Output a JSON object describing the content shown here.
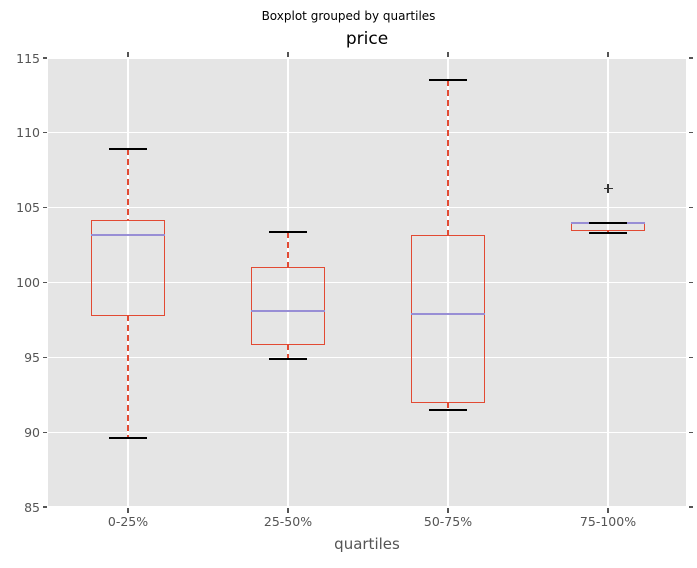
{
  "figure": {
    "title": "Boxplot grouped by quartiles",
    "axes_title": "price",
    "xlabel": "quartiles"
  },
  "colors": {
    "figure_bg": "#ffffff",
    "plot_bg": "#e5e5e5",
    "grid": "#ffffff",
    "box": "#e24a33",
    "whisker": "#e24a33",
    "median": "#988ed5",
    "cap": "#000000",
    "flier": "#333333",
    "tick_text": "#555555",
    "title_text": "#000000"
  },
  "chart_data": {
    "type": "boxplot",
    "title": "Boxplot grouped by quartiles",
    "axes_title": "price",
    "xlabel": "quartiles",
    "ylabel": "",
    "grid": true,
    "ylim": [
      85,
      115
    ],
    "yticks": [
      85,
      90,
      95,
      100,
      105,
      110,
      115
    ],
    "categories": [
      "0-25%",
      "25-50%",
      "50-75%",
      "75-100%"
    ],
    "series": [
      {
        "category": "0-25%",
        "whislo": 89.6,
        "q1": 97.8,
        "med": 103.2,
        "q3": 104.1,
        "whishi": 108.9,
        "fliers": []
      },
      {
        "category": "25-50%",
        "whislo": 94.9,
        "q1": 95.9,
        "med": 98.1,
        "q3": 101.0,
        "whishi": 103.4,
        "fliers": []
      },
      {
        "category": "50-75%",
        "whislo": 91.5,
        "q1": 92.0,
        "med": 97.9,
        "q3": 103.1,
        "whishi": 113.5,
        "fliers": []
      },
      {
        "category": "75-100%",
        "whislo": 103.3,
        "q1": 103.5,
        "med": 104.0,
        "q3": 104.0,
        "whishi": 104.0,
        "fliers": [
          106.3
        ]
      }
    ]
  }
}
